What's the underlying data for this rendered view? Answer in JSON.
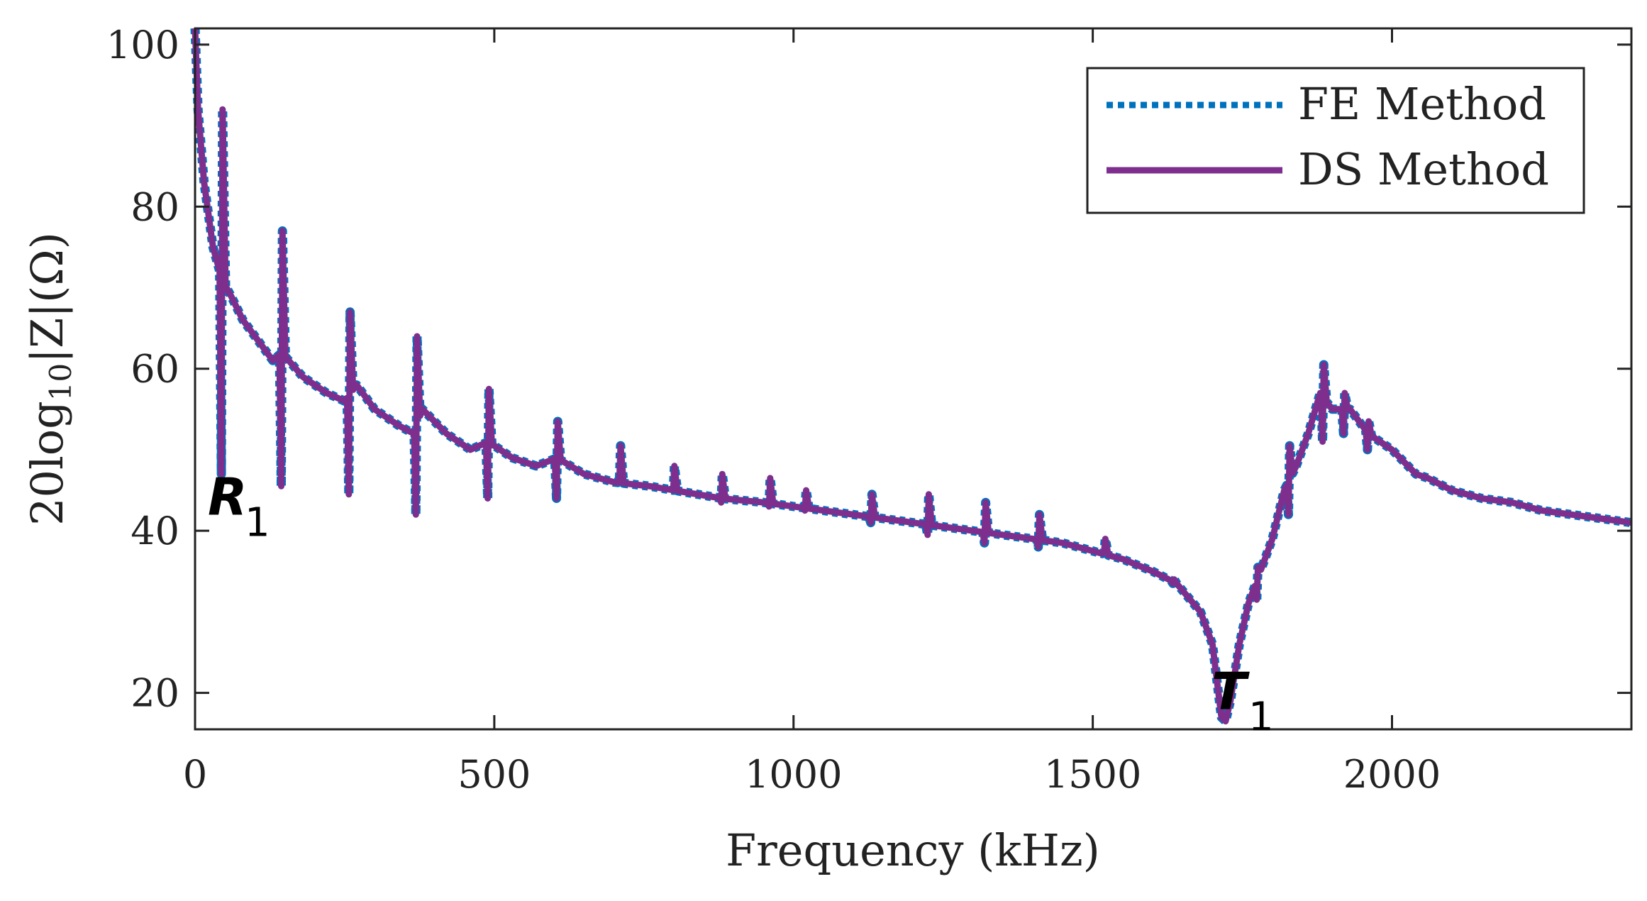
{
  "chart_data": {
    "type": "line",
    "xlabel": "Frequency (kHz)",
    "ylabel": {
      "prefix": "20log",
      "sub": "10",
      "suffix": "|Z|(Ω)"
    },
    "xlim": [
      0,
      2400
    ],
    "ylim": [
      15.5,
      102
    ],
    "xticks": [
      0,
      500,
      1000,
      1500,
      2000
    ],
    "yticks": [
      20,
      40,
      60,
      80,
      100
    ],
    "grid": false,
    "legend_position": "top-right",
    "series": [
      {
        "name": "FE Method",
        "style": "dotted",
        "color": "#0072BD"
      },
      {
        "name": "DS Method",
        "style": "solid",
        "color": "#7E2F8E"
      }
    ],
    "baseline": [
      [
        0,
        102
      ],
      [
        5,
        92
      ],
      [
        15,
        83
      ],
      [
        30,
        75
      ],
      [
        45,
        71
      ],
      [
        60,
        69
      ],
      [
        80,
        66
      ],
      [
        100,
        64
      ],
      [
        130,
        61
      ],
      [
        145,
        62
      ],
      [
        180,
        59
      ],
      [
        220,
        57
      ],
      [
        250,
        56
      ],
      [
        270,
        58
      ],
      [
        300,
        55
      ],
      [
        340,
        53
      ],
      [
        365,
        52
      ],
      [
        380,
        55
      ],
      [
        420,
        52
      ],
      [
        460,
        50
      ],
      [
        490,
        51
      ],
      [
        530,
        49
      ],
      [
        570,
        48
      ],
      [
        605,
        49
      ],
      [
        650,
        47
      ],
      [
        700,
        46
      ],
      [
        760,
        45.5
      ],
      [
        800,
        45
      ],
      [
        880,
        44
      ],
      [
        950,
        43.5
      ],
      [
        1000,
        43
      ],
      [
        1100,
        42
      ],
      [
        1150,
        41.5
      ],
      [
        1200,
        41
      ],
      [
        1300,
        40
      ],
      [
        1350,
        39.5
      ],
      [
        1400,
        39
      ],
      [
        1450,
        38.5
      ],
      [
        1500,
        37.5
      ],
      [
        1550,
        36.5
      ],
      [
        1600,
        35
      ],
      [
        1640,
        33.5
      ],
      [
        1680,
        30
      ],
      [
        1700,
        26
      ],
      [
        1715,
        17
      ],
      [
        1722,
        16.5
      ],
      [
        1730,
        19
      ],
      [
        1745,
        26
      ],
      [
        1760,
        31
      ],
      [
        1780,
        35
      ],
      [
        1800,
        39
      ],
      [
        1820,
        45
      ],
      [
        1840,
        48
      ],
      [
        1860,
        52
      ],
      [
        1880,
        57
      ],
      [
        1900,
        55
      ],
      [
        1930,
        55
      ],
      [
        1960,
        52
      ],
      [
        2000,
        50
      ],
      [
        2040,
        47
      ],
      [
        2060,
        46.5
      ],
      [
        2100,
        45
      ],
      [
        2150,
        44
      ],
      [
        2200,
        43.5
      ],
      [
        2250,
        42.5
      ],
      [
        2300,
        42
      ],
      [
        2350,
        41.5
      ],
      [
        2400,
        41
      ]
    ],
    "resonances": [
      {
        "f": 45,
        "max": 92,
        "min": 47
      },
      {
        "f": 145,
        "max": 77,
        "min": 45.5
      },
      {
        "f": 258,
        "max": 67,
        "min": 44.5
      },
      {
        "f": 370,
        "max": 64,
        "min": 42
      },
      {
        "f": 490,
        "max": 57.5,
        "min": 44
      },
      {
        "f": 605,
        "max": 53.5,
        "min": 44
      },
      {
        "f": 710,
        "max": 50.5,
        "min": 46
      },
      {
        "f": 800,
        "max": 48,
        "min": 45
      },
      {
        "f": 880,
        "max": 47,
        "min": 43.5
      },
      {
        "f": 960,
        "max": 46.5,
        "min": 43
      },
      {
        "f": 1020,
        "max": 45,
        "min": 42.5
      },
      {
        "f": 1130,
        "max": 44.5,
        "min": 41
      },
      {
        "f": 1225,
        "max": 44.5,
        "min": 39.5
      },
      {
        "f": 1320,
        "max": 43.5,
        "min": 38.5
      },
      {
        "f": 1410,
        "max": 42,
        "min": 38
      },
      {
        "f": 1520,
        "max": 39,
        "min": 37.5
      },
      {
        "f": 1635,
        "max": 34,
        "min": 33.5
      },
      {
        "f": 1775,
        "max": 35.5,
        "min": 31.5
      },
      {
        "f": 1828,
        "max": 50.5,
        "min": 42
      },
      {
        "f": 1885,
        "max": 60.5,
        "min": 51
      },
      {
        "f": 1920,
        "max": 57,
        "min": 52
      },
      {
        "f": 1960,
        "max": 53.5,
        "min": 50
      }
    ],
    "annotations": [
      {
        "label": "R",
        "sub": "1",
        "x": 45,
        "y": 42
      },
      {
        "label": "T",
        "sub": "1",
        "x": 1722,
        "y": 18
      }
    ]
  }
}
